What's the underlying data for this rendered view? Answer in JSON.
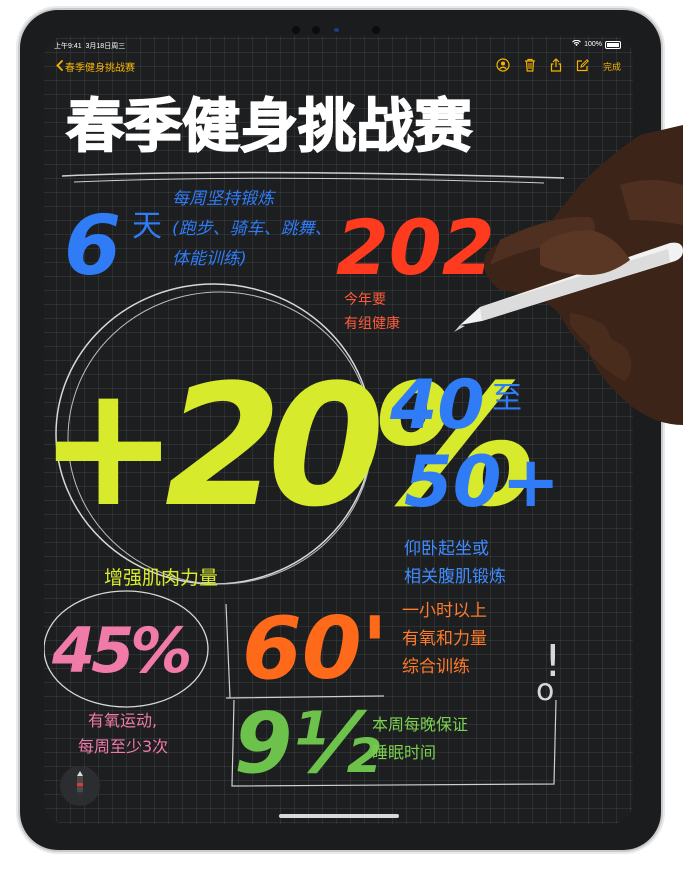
{
  "status_bar": {
    "time": "上午9:41",
    "date": "3月18日周三",
    "battery": "100%"
  },
  "nav": {
    "back_label": "春季健身挑战赛",
    "done_label": "完成"
  },
  "note": {
    "title": "春季健身挑战赛",
    "big_6": "6",
    "tian": "天",
    "exercise_lines": [
      "每周坚持锻炼",
      "(跑步、骑车、跳舞、",
      "体能训练)"
    ],
    "red_number": "202",
    "red_caption": [
      "今年要",
      "有组健康"
    ],
    "plus20": "+20%",
    "plus20_caption": "增强肌肉力量",
    "n40": "40",
    "zhi": "至",
    "n50": "50+",
    "situp_lines": [
      "仰卧起坐或",
      "相关腹肌锻炼"
    ],
    "pct45": "45%",
    "pct45_caption": [
      "有氧运动,",
      "每周至少3次"
    ],
    "min60": "60'",
    "min60_caption": [
      "一小时以上",
      "有氧和力量",
      "综合训练"
    ],
    "exclaim": "!",
    "o_mark": "o",
    "hours9": "9½",
    "sleep_lines": [
      "本周每晚保证",
      "睡眠时间"
    ]
  },
  "colors": {
    "accent": "#f7b500",
    "blue": "#2f7cf6",
    "red": "#ff3b1f",
    "yellow": "#d7ea2c",
    "pink": "#f07aa8",
    "orange": "#ff6a1a",
    "green": "#6cc24a"
  },
  "icons": [
    "chevron-left-icon",
    "collaborate-icon",
    "trash-icon",
    "share-icon",
    "compose-icon",
    "pencil-icon",
    "wifi-icon",
    "battery-icon"
  ]
}
